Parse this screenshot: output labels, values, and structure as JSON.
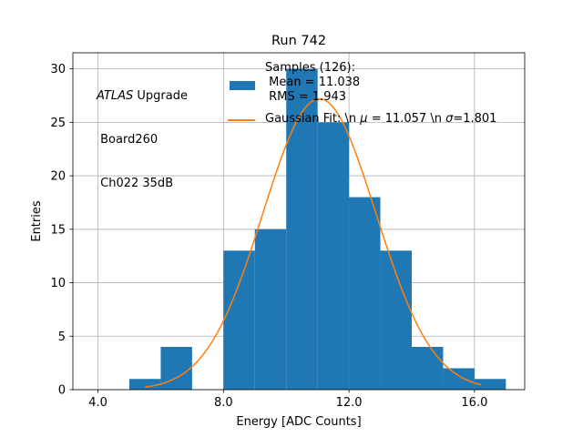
{
  "chart_data": {
    "type": "bar",
    "title": "Run 742",
    "xlabel": "Energy [ADC Counts]",
    "ylabel": "Entries",
    "xlim": [
      3.2,
      17.6
    ],
    "ylim": [
      0,
      31.5
    ],
    "x_ticks": [
      4.0,
      8.0,
      12.0,
      16.0
    ],
    "x_tick_labels": [
      "4.0",
      "8.0",
      "12.0",
      "16.0"
    ],
    "y_ticks": [
      0,
      5,
      10,
      15,
      20,
      25,
      30
    ],
    "y_tick_labels": [
      "0",
      "5",
      "10",
      "15",
      "20",
      "25",
      "30"
    ],
    "grid": true,
    "bins": [
      {
        "x0": 5,
        "x1": 6,
        "count": 1
      },
      {
        "x0": 6,
        "x1": 7,
        "count": 4
      },
      {
        "x0": 7,
        "x1": 8,
        "count": 0
      },
      {
        "x0": 8,
        "x1": 9,
        "count": 13
      },
      {
        "x0": 9,
        "x1": 10,
        "count": 15
      },
      {
        "x0": 10,
        "x1": 11,
        "count": 30
      },
      {
        "x0": 11,
        "x1": 12,
        "count": 25
      },
      {
        "x0": 12,
        "x1": 13,
        "count": 18
      },
      {
        "x0": 13,
        "x1": 14,
        "count": 13
      },
      {
        "x0": 14,
        "x1": 15,
        "count": 4
      },
      {
        "x0": 15,
        "x1": 16,
        "count": 2
      },
      {
        "x0": 16,
        "x1": 17,
        "count": 1
      }
    ],
    "fit": {
      "mu": 11.057,
      "sigma": 1.801,
      "x_range": [
        5.5,
        16.2
      ],
      "peak": 27.2
    },
    "colors": {
      "histogram": "#1f77b4",
      "fit": "#ff7f0e",
      "grid": "#b0b0b0"
    },
    "legend_placement": "top-center",
    "legend": {
      "samples_lines": [
        "Samples (126):",
        " Mean = 11.038",
        " RMS = 1.943"
      ],
      "fit_label_prefix": "Gaussian Fit: \\n ",
      "fit_label_mu": " = 11.057 \\n ",
      "fit_label_sigma": "=1.801"
    }
  },
  "annotation": {
    "atlas": "ATLAS",
    "upgrade": " Upgrade",
    "board": " Board260",
    "channel": " Ch022 35dB"
  }
}
